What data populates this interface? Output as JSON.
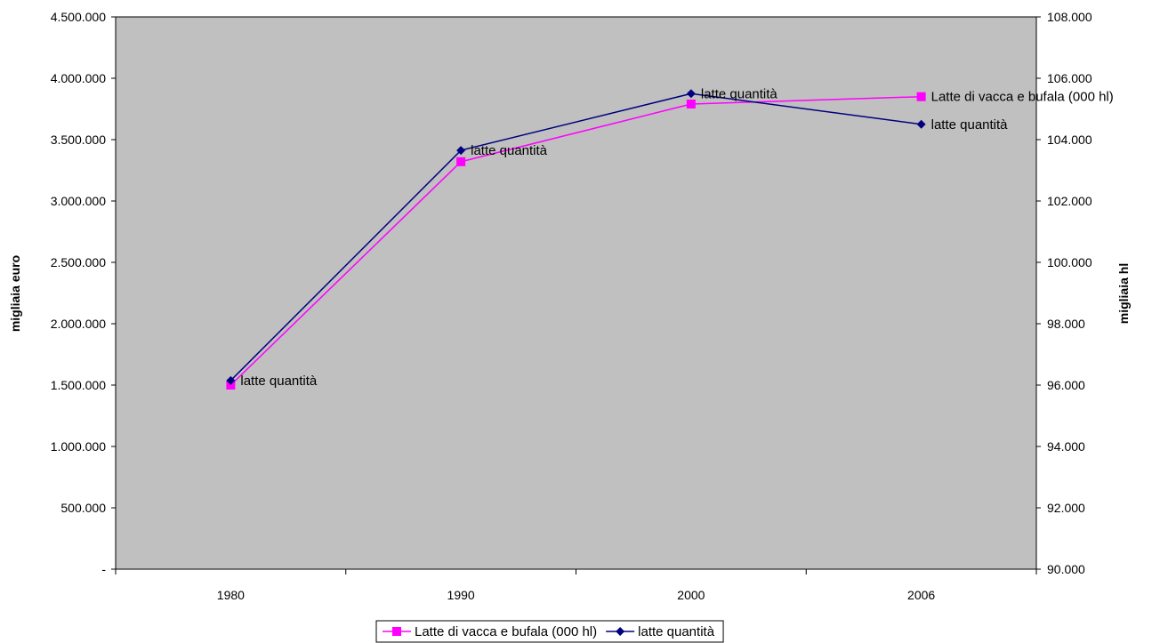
{
  "chart_data": {
    "type": "line",
    "categories": [
      "1980",
      "1990",
      "2000",
      "2006"
    ],
    "ylabel_left": "migliaia euro",
    "ylabel_right": "migliaia hl",
    "ylim_left": [
      0,
      4500000
    ],
    "ylim_right": [
      90000,
      108000
    ],
    "yticks_left": [
      "-",
      "500.000",
      "1.000.000",
      "1.500.000",
      "2.000.000",
      "2.500.000",
      "3.000.000",
      "3.500.000",
      "4.000.000",
      "4.500.000"
    ],
    "yticks_right": [
      "90.000",
      "92.000",
      "94.000",
      "96.000",
      "98.000",
      "100.000",
      "102.000",
      "104.000",
      "106.000",
      "108.000"
    ],
    "grid": false,
    "plot_background": "#C0C0C0",
    "legend_position": "bottom",
    "series": [
      {
        "name": "Latte di vacca e bufala (000 hl)",
        "axis": "left",
        "color": "#FF00FF",
        "marker": "square",
        "values": [
          1500000,
          3320000,
          3790000,
          3850000
        ],
        "data_labels": [
          "",
          "",
          "",
          "Latte di vacca e bufala (000 hl)"
        ]
      },
      {
        "name": "latte quantità",
        "axis": "right",
        "color": "#000080",
        "marker": "diamond",
        "values": [
          96150,
          103650,
          105500,
          104500
        ],
        "data_labels": [
          "latte quantità",
          "latte quantità",
          "latte quantità",
          "latte quantità"
        ]
      }
    ]
  }
}
